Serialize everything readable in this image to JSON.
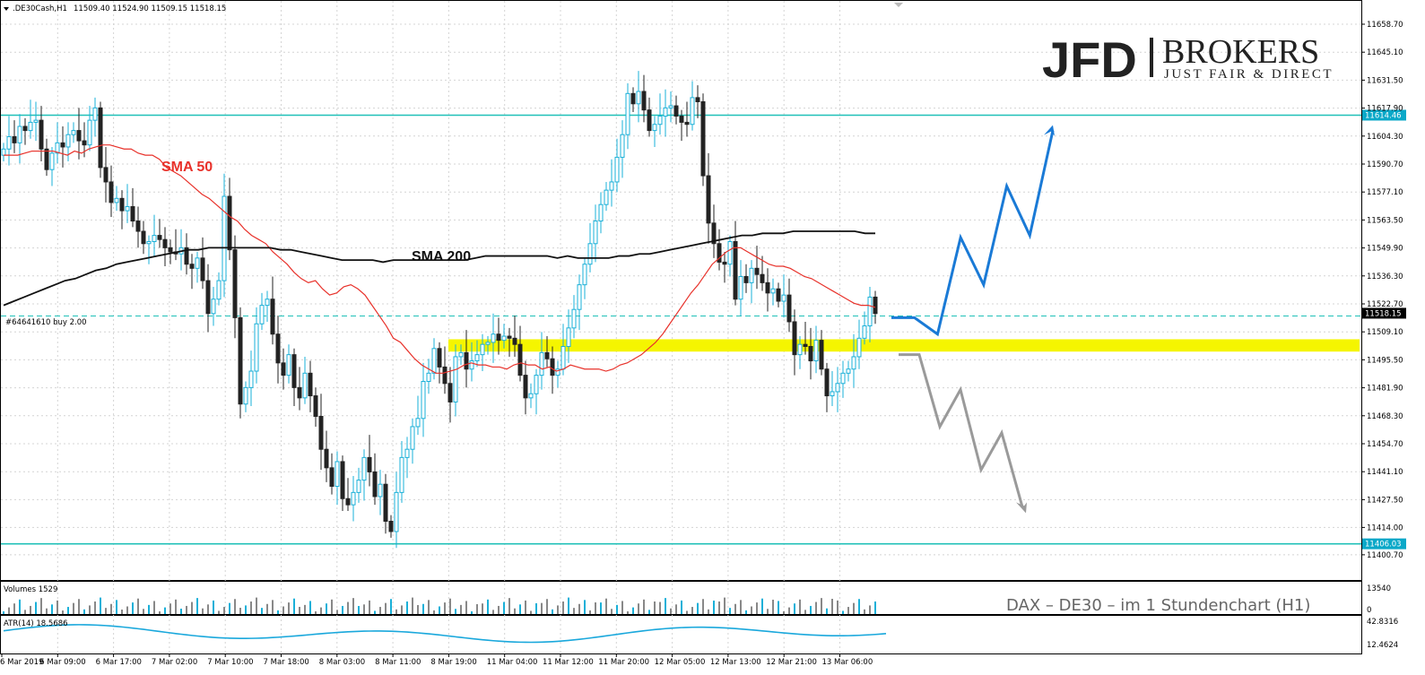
{
  "header": {
    "symbol": ".DE30Cash,H1",
    "ohlc": "11509.40 11524.90 11509.15 11518.15"
  },
  "logo": {
    "main": "JFD",
    "brand": "BROKERS",
    "tagline": "JUST FAIR & DIRECT"
  },
  "caption": "DAX – DE30 –  im  1 Stundenchart (H1)",
  "order_label": "#64641610 buy 2.00",
  "annotations": {
    "sma50": "SMA 50",
    "sma200": "SMA 200"
  },
  "colors": {
    "bull": "#1ab0d8",
    "bear": "#222222",
    "sma50": "#e8312a",
    "sma200": "#111111",
    "level": "#20c0b8",
    "zone": "#f5f500",
    "arrow_up": "#1a7ad6",
    "arrow_down": "#9a9a9a",
    "atr": "#1aa8dc",
    "volume_up": "#1ab0d8",
    "volume_down": "#888888",
    "tag_bg": "#0aa8c8"
  },
  "chart_data": {
    "type": "candlestick",
    "ylim": [
      11400.7,
      11663.0
    ],
    "y_ticks": [
      "11658.70",
      "11645.10",
      "11631.50",
      "11617.90",
      "11604.30",
      "11590.70",
      "11577.10",
      "11563.50",
      "11549.90",
      "11536.30",
      "11522.70",
      "11509.10",
      "11495.50",
      "11481.90",
      "11468.30",
      "11454.70",
      "11441.10",
      "11427.50",
      "11414.00",
      "11400.70"
    ],
    "x_ticks": [
      "6 Mar 2019",
      "6 Mar 09:00",
      "6 Mar 17:00",
      "7 Mar 02:00",
      "7 Mar 10:00",
      "7 Mar 18:00",
      "8 Mar 03:00",
      "8 Mar 11:00",
      "8 Mar 19:00",
      "11 Mar 04:00",
      "11 Mar 12:00",
      "11 Mar 20:00",
      "12 Mar 05:00",
      "12 Mar 13:00",
      "12 Mar 21:00",
      "13 Mar 06:00"
    ],
    "levels": [
      {
        "value": 11614.46,
        "label": "11614.46"
      },
      {
        "value": 11406.03,
        "label": "11406.03"
      }
    ],
    "current_price": {
      "value": 11518.15,
      "label": "11518.15"
    },
    "order_level": 11516.8,
    "zone": [
      11499.5,
      11505.5
    ],
    "closes": [
      11598,
      11604,
      11601,
      11609,
      11607,
      11611,
      11612,
      11598,
      11588,
      11596,
      11601,
      11599,
      11605,
      11607,
      11602,
      11600,
      11612,
      11618,
      11589,
      11582,
      11572,
      11574,
      11568,
      11570,
      11563,
      11558,
      11552,
      11553,
      11556,
      11554,
      11550,
      11548,
      11547,
      11550,
      11542,
      11540,
      11545,
      11534,
      11518,
      11525,
      11534,
      11575,
      11549,
      11516,
      11474,
      11482,
      11490,
      11513,
      11522,
      11525,
      11508,
      11494,
      11488,
      11498,
      11482,
      11477,
      11489,
      11478,
      11468,
      11452,
      11443,
      11434,
      11446,
      11428,
      11425,
      11431,
      11437,
      11448,
      11441,
      11429,
      11435,
      11417,
      11412,
      11431,
      11448,
      11452,
      11463,
      11467,
      11485,
      11489,
      11501,
      11492,
      11484,
      11475,
      11497,
      11499,
      11491,
      11495,
      11498,
      11503,
      11504,
      11508,
      11505,
      11507,
      11506,
      11503,
      11488,
      11477,
      11479,
      11488,
      11499,
      11496,
      11488,
      11491,
      11502,
      11511,
      11520,
      11532,
      11542,
      11552,
      11563,
      11571,
      11578,
      11582,
      11594,
      11605,
      11625,
      11620,
      11626,
      11617,
      11607,
      11610,
      11614,
      11618,
      11619,
      11614,
      11611,
      11610,
      11623,
      11621,
      11585,
      11562,
      11552,
      11543,
      11542,
      11553,
      11525,
      11536,
      11533,
      11540,
      11537,
      11533,
      11528,
      11530,
      11524,
      11527,
      11514,
      11498,
      11503,
      11502,
      11495,
      11505,
      11491,
      11478,
      11480,
      11484,
      11489,
      11491,
      11497,
      11506,
      11512,
      11526,
      11518
    ],
    "sma50": [
      11595,
      11595,
      11595,
      11596,
      11597,
      11597,
      11597,
      11597,
      11596,
      11595,
      11597,
      11596,
      11598,
      11599,
      11600,
      11600,
      11599,
      11598,
      11598,
      11596,
      11595,
      11595,
      11593,
      11589,
      11587,
      11585,
      11582,
      11579,
      11576,
      11574,
      11571,
      11568,
      11565,
      11563,
      11559,
      11556,
      11554,
      11552,
      11548,
      11545,
      11542,
      11538,
      11535,
      11533,
      11534,
      11530,
      11527,
      11528,
      11531,
      11532,
      11530,
      11527,
      11522,
      11517,
      11512,
      11506,
      11504,
      11500,
      11496,
      11493,
      11491,
      11489,
      11489,
      11490,
      11491,
      11493,
      11494,
      11493,
      11493,
      11492,
      11492,
      11491,
      11493,
      11494,
      11493,
      11493,
      11491,
      11492,
      11490,
      11491,
      11493,
      11492,
      11491,
      11491,
      11491,
      11490,
      11491,
      11493,
      11494,
      11496,
      11498,
      11501,
      11504,
      11508,
      11513,
      11518,
      11523,
      11528,
      11532,
      11537,
      11542,
      11545,
      11548,
      11550,
      11550,
      11548,
      11546,
      11544,
      11542,
      11541,
      11541,
      11540,
      11538,
      11536,
      11535,
      11533,
      11531,
      11529,
      11527,
      11525,
      11523,
      11522,
      11522,
      11521
    ],
    "sma200": [
      11522,
      11524,
      11526,
      11528,
      11530,
      11532,
      11534,
      11535,
      11537,
      11539,
      11540,
      11542,
      11543,
      11544,
      11545,
      11546,
      11547,
      11548,
      11549,
      11549,
      11550,
      11550,
      11550,
      11550,
      11550,
      11550,
      11550,
      11549,
      11549,
      11548,
      11547,
      11546,
      11545,
      11544,
      11544,
      11544,
      11544,
      11543,
      11544,
      11544,
      11544,
      11544,
      11544,
      11544,
      11544,
      11544,
      11545,
      11546,
      11546,
      11546,
      11546,
      11546,
      11546,
      11546,
      11545,
      11546,
      11545,
      11545,
      11545,
      11545,
      11546,
      11546,
      11547,
      11547,
      11548,
      11549,
      11550,
      11551,
      11552,
      11553,
      11554,
      11555,
      11556,
      11556,
      11557,
      11557,
      11557,
      11558,
      11558,
      11558,
      11558,
      11558,
      11558,
      11558,
      11557,
      11557
    ],
    "projection_up": [
      [
        11516,
        0
      ],
      [
        11516,
        0
      ],
      [
        11508,
        0
      ],
      [
        11555,
        0
      ],
      [
        11532,
        0
      ],
      [
        11580,
        0
      ],
      [
        11556,
        0
      ],
      [
        11607,
        0
      ]
    ],
    "projection_down": [
      [
        11498,
        0
      ],
      [
        11498,
        0
      ],
      [
        11463,
        0
      ],
      [
        11481,
        0
      ],
      [
        11442,
        0
      ],
      [
        11460,
        0
      ],
      [
        11424,
        0
      ]
    ],
    "volumes": {
      "label": "Volumes 1529",
      "ymax_label": "13540",
      "ymin_label": "0"
    },
    "atr": {
      "label": "ATR(14) 18.5686",
      "ymax_label": "42.8316",
      "ymin_label": "12.4624"
    }
  }
}
